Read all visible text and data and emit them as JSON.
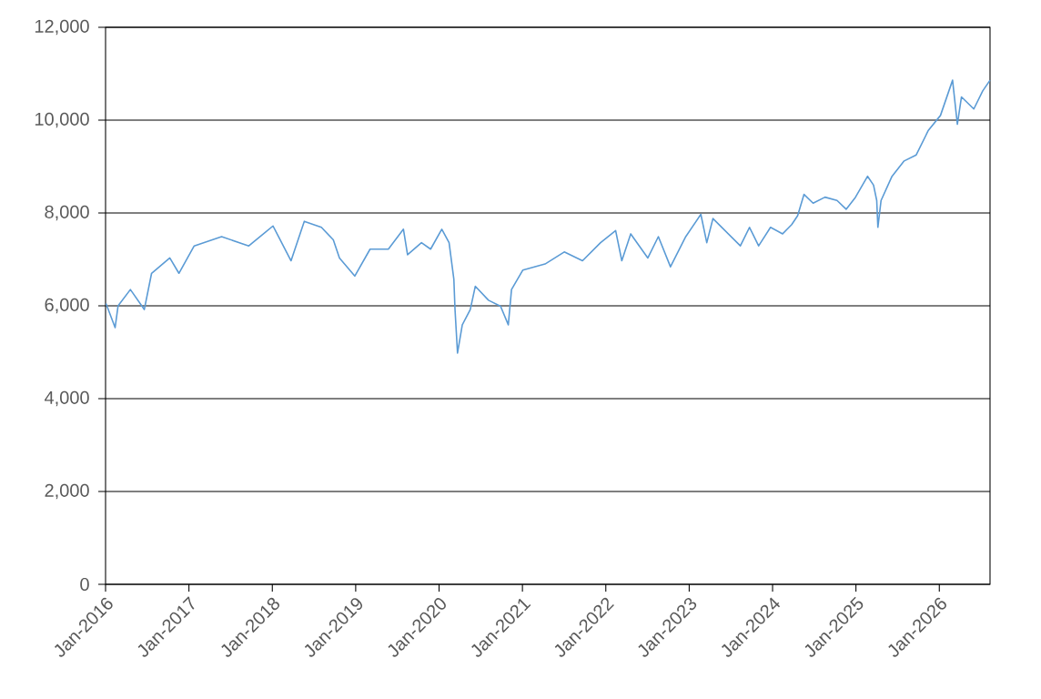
{
  "chart_data": {
    "type": "line",
    "x": [
      "2016-01-03",
      "2016-02-12",
      "2016-02-25",
      "2016-04-19",
      "2016-06-19",
      "2016-07-21",
      "2016-10-09",
      "2016-11-18",
      "2017-01-24",
      "2017-05-24",
      "2017-09-20",
      "2018-01-04",
      "2018-03-24",
      "2018-05-21",
      "2018-08-04",
      "2018-09-25",
      "2018-10-22",
      "2018-12-28",
      "2019-03-05",
      "2019-05-24",
      "2019-07-29",
      "2019-08-16",
      "2019-10-16",
      "2019-11-25",
      "2020-01-13",
      "2020-02-14",
      "2020-03-06",
      "2020-03-11",
      "2020-03-22",
      "2020-04-12",
      "2020-05-17",
      "2020-06-08",
      "2020-08-05",
      "2020-09-27",
      "2020-10-31",
      "2020-11-14",
      "2021-01-03",
      "2021-04-10",
      "2021-07-03",
      "2021-09-21",
      "2021-12-09",
      "2022-02-13",
      "2022-03-12",
      "2022-04-20",
      "2022-07-04",
      "2022-08-19",
      "2022-10-11",
      "2022-12-17",
      "2023-02-21",
      "2023-03-19",
      "2023-04-15",
      "2023-08-13",
      "2023-09-22",
      "2023-11-01",
      "2023-12-23",
      "2024-02-14",
      "2024-03-25",
      "2024-04-20",
      "2024-05-18",
      "2024-06-27",
      "2024-08-18",
      "2024-10-10",
      "2024-11-19",
      "2024-12-30",
      "2025-02-21",
      "2025-03-19",
      "2025-04-02",
      "2025-04-07",
      "2025-04-21",
      "2025-06-08",
      "2025-07-31",
      "2025-09-22",
      "2025-11-14",
      "2026-01-06",
      "2026-02-28",
      "2026-03-21",
      "2026-04-08",
      "2026-06-01",
      "2026-07-10",
      "2026-08-11"
    ],
    "series": [
      {
        "color": "#5b9bd5",
        "values": [
          6050,
          5530,
          6000,
          6350,
          5920,
          6700,
          7030,
          6700,
          7290,
          7490,
          7290,
          7720,
          6970,
          7820,
          7690,
          7420,
          7030,
          6640,
          7220,
          7220,
          7650,
          7100,
          7360,
          7220,
          7650,
          7360,
          6570,
          5920,
          4980,
          5590,
          5920,
          6420,
          6120,
          5990,
          5590,
          6350,
          6770,
          6900,
          7160,
          6970,
          7360,
          7620,
          6970,
          7550,
          7030,
          7490,
          6840,
          7490,
          7970,
          7360,
          7880,
          7290,
          7690,
          7290,
          7690,
          7550,
          7750,
          7940,
          8400,
          8210,
          8340,
          8270,
          8080,
          8340,
          8790,
          8600,
          8270,
          7690,
          8270,
          8790,
          9120,
          9250,
          9780,
          10100,
          10860,
          9910,
          10500,
          10240,
          10630,
          10860
        ]
      }
    ],
    "xlim": [
      "2016-01-01",
      "2026-08-11"
    ],
    "xticks": [
      {
        "value": "2016-01",
        "label": "Jan-2016"
      },
      {
        "value": "2017-01",
        "label": "Jan-2017"
      },
      {
        "value": "2018-01",
        "label": "Jan-2018"
      },
      {
        "value": "2019-01",
        "label": "Jan-2019"
      },
      {
        "value": "2020-01",
        "label": "Jan-2020"
      },
      {
        "value": "2021-01",
        "label": "Jan-2021"
      },
      {
        "value": "2022-01",
        "label": "Jan-2022"
      },
      {
        "value": "2023-01",
        "label": "Jan-2023"
      },
      {
        "value": "2024-01",
        "label": "Jan-2024"
      },
      {
        "value": "2025-01",
        "label": "Jan-2025"
      },
      {
        "value": "2026-01",
        "label": "Jan-2026"
      }
    ],
    "ylim": [
      0,
      12000
    ],
    "yticks": [
      0,
      {
        "value": 2000,
        "label": "2,000"
      },
      {
        "value": 4000,
        "label": "4,000"
      },
      {
        "value": 6000,
        "label": "6,000"
      },
      {
        "value": 8000,
        "label": "8,000"
      },
      {
        "value": 10000,
        "label": "10,000"
      },
      {
        "value": 12000,
        "label": "12,000"
      }
    ],
    "grid": "y"
  }
}
